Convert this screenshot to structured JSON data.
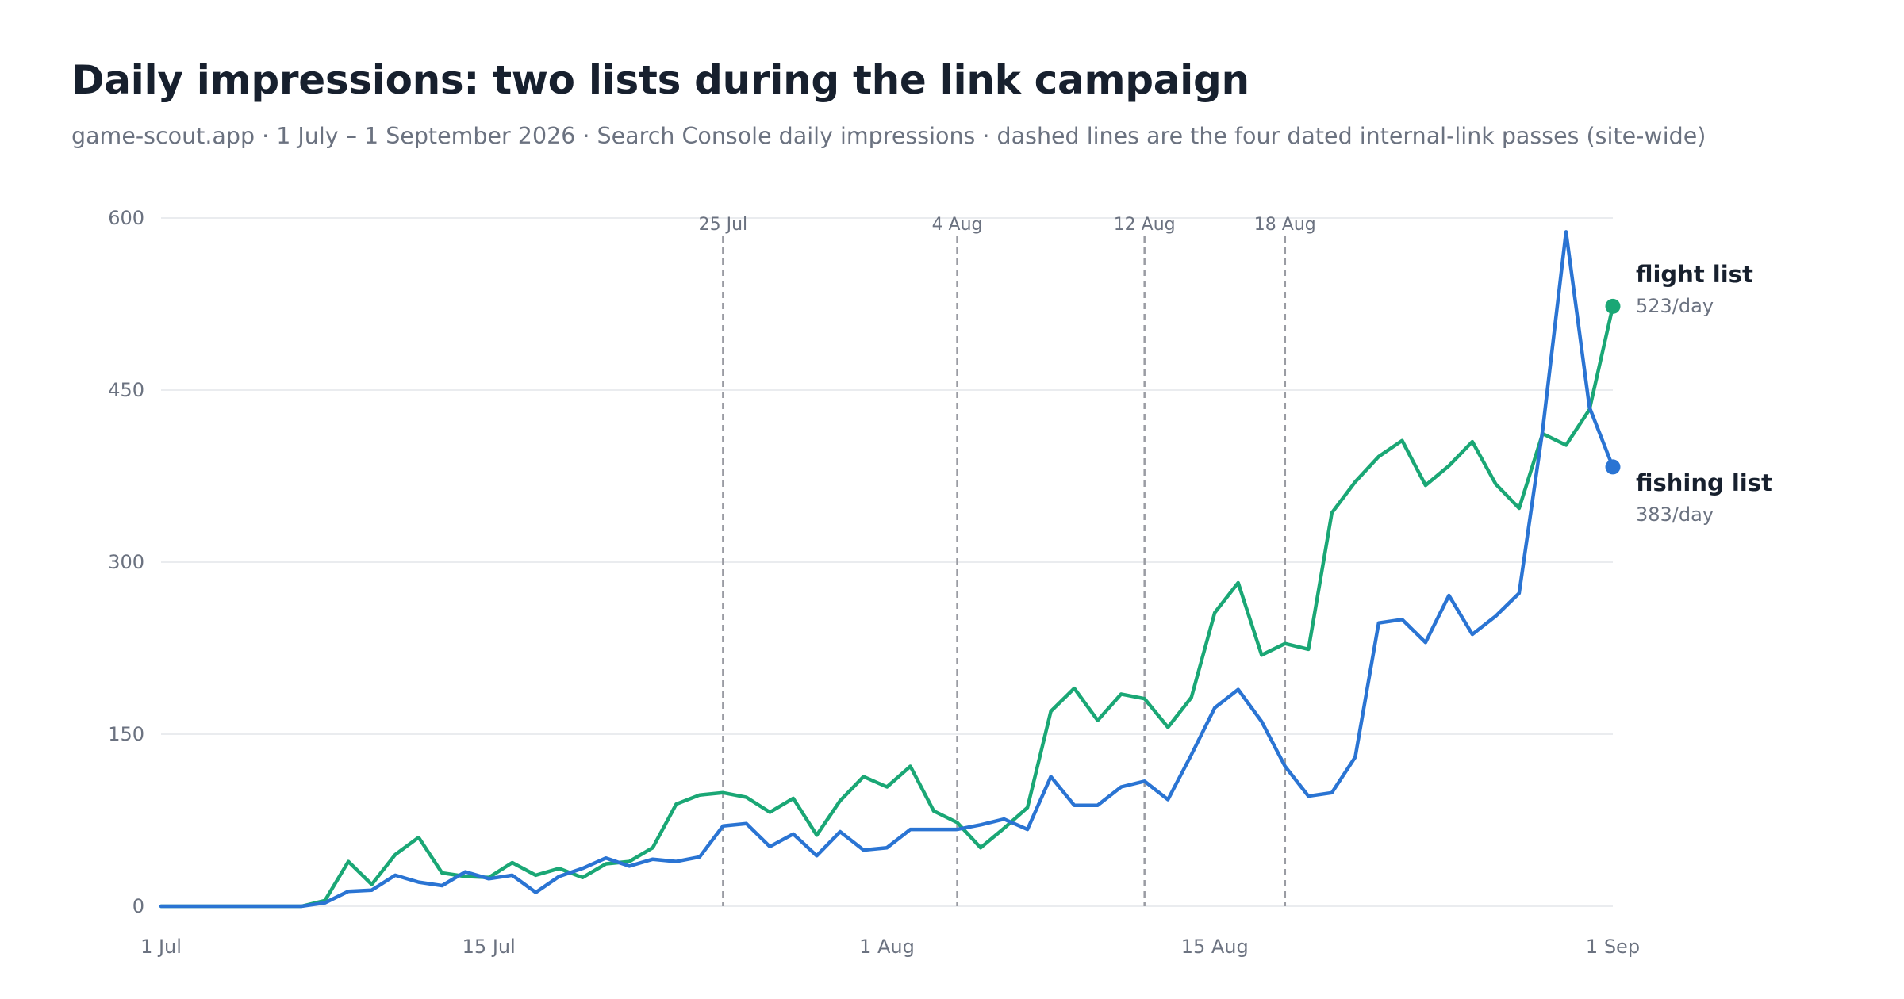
{
  "title": "Daily impressions: two lists during the link campaign",
  "subtitle": "game-scout.app · 1 July – 1 September 2026 · Search Console daily impressions · dashed lines are the four dated internal-link passes (site-wide)",
  "chart_data": {
    "type": "line",
    "x_range": [
      "2026-07-01",
      "2026-09-01"
    ],
    "x_ticks": [
      {
        "date": "2026-07-01",
        "label": "1 Jul"
      },
      {
        "date": "2026-07-15",
        "label": "15 Jul"
      },
      {
        "date": "2026-08-01",
        "label": "1 Aug"
      },
      {
        "date": "2026-08-15",
        "label": "15 Aug"
      },
      {
        "date": "2026-09-01",
        "label": "1 Sep"
      }
    ],
    "ylim": [
      0,
      600
    ],
    "y_ticks": [
      0,
      150,
      300,
      450,
      600
    ],
    "grid": "horizontal",
    "events": [
      {
        "date": "2026-07-25",
        "label": "25 Jul"
      },
      {
        "date": "2026-08-04",
        "label": "4 Aug"
      },
      {
        "date": "2026-08-12",
        "label": "12 Aug"
      },
      {
        "date": "2026-08-18",
        "label": "18 Aug"
      }
    ],
    "series": [
      {
        "name": "flight list",
        "color": "#1aa775",
        "end_label": "523/day",
        "x": [
          "2026-07-01",
          "2026-07-02",
          "2026-07-03",
          "2026-07-04",
          "2026-07-05",
          "2026-07-06",
          "2026-07-07",
          "2026-07-08",
          "2026-07-09",
          "2026-07-10",
          "2026-07-11",
          "2026-07-12",
          "2026-07-13",
          "2026-07-14",
          "2026-07-15",
          "2026-07-16",
          "2026-07-17",
          "2026-07-18",
          "2026-07-19",
          "2026-07-20",
          "2026-07-21",
          "2026-07-22",
          "2026-07-23",
          "2026-07-24",
          "2026-07-25",
          "2026-07-26",
          "2026-07-27",
          "2026-07-28",
          "2026-07-29",
          "2026-07-30",
          "2026-07-31",
          "2026-08-01",
          "2026-08-02",
          "2026-08-03",
          "2026-08-04",
          "2026-08-05",
          "2026-08-06",
          "2026-08-07",
          "2026-08-08",
          "2026-08-09",
          "2026-08-10",
          "2026-08-11",
          "2026-08-12",
          "2026-08-13",
          "2026-08-14",
          "2026-08-15",
          "2026-08-16",
          "2026-08-17",
          "2026-08-18",
          "2026-08-19",
          "2026-08-20",
          "2026-08-21",
          "2026-08-22",
          "2026-08-23",
          "2026-08-24",
          "2026-08-25",
          "2026-08-26",
          "2026-08-27",
          "2026-08-28",
          "2026-08-29",
          "2026-08-30",
          "2026-08-31",
          "2026-09-01"
        ],
        "values": [
          0,
          0,
          0,
          0,
          0,
          0,
          0,
          5,
          39,
          19,
          45,
          60,
          29,
          26,
          25,
          38,
          27,
          33,
          25,
          37,
          39,
          51,
          89,
          97,
          99,
          95,
          82,
          94,
          62,
          92,
          113,
          104,
          122,
          83,
          73,
          51,
          68,
          86,
          170,
          190,
          162,
          185,
          181,
          156,
          182,
          256,
          282,
          219,
          229,
          224,
          343,
          370,
          392,
          406,
          367,
          384,
          405,
          368,
          347,
          412,
          402,
          433,
          523
        ]
      },
      {
        "name": "fishing list",
        "color": "#2a74d3",
        "end_label": "383/day",
        "x": [
          "2026-07-01",
          "2026-07-02",
          "2026-07-03",
          "2026-07-04",
          "2026-07-05",
          "2026-07-06",
          "2026-07-07",
          "2026-07-08",
          "2026-07-09",
          "2026-07-10",
          "2026-07-11",
          "2026-07-12",
          "2026-07-13",
          "2026-07-14",
          "2026-07-15",
          "2026-07-16",
          "2026-07-17",
          "2026-07-18",
          "2026-07-19",
          "2026-07-20",
          "2026-07-21",
          "2026-07-22",
          "2026-07-23",
          "2026-07-24",
          "2026-07-25",
          "2026-07-26",
          "2026-07-27",
          "2026-07-28",
          "2026-07-29",
          "2026-07-30",
          "2026-07-31",
          "2026-08-01",
          "2026-08-02",
          "2026-08-03",
          "2026-08-04",
          "2026-08-05",
          "2026-08-06",
          "2026-08-07",
          "2026-08-08",
          "2026-08-09",
          "2026-08-10",
          "2026-08-11",
          "2026-08-12",
          "2026-08-13",
          "2026-08-14",
          "2026-08-15",
          "2026-08-16",
          "2026-08-17",
          "2026-08-18",
          "2026-08-19",
          "2026-08-20",
          "2026-08-21",
          "2026-08-22",
          "2026-08-23",
          "2026-08-24",
          "2026-08-25",
          "2026-08-26",
          "2026-08-27",
          "2026-08-28",
          "2026-08-29",
          "2026-08-30",
          "2026-08-31",
          "2026-09-01"
        ],
        "values": [
          0,
          0,
          0,
          0,
          0,
          0,
          0,
          3,
          13,
          14,
          27,
          21,
          18,
          30,
          24,
          27,
          12,
          26,
          33,
          42,
          35,
          41,
          39,
          43,
          70,
          72,
          52,
          63,
          44,
          65,
          49,
          51,
          67,
          67,
          67,
          71,
          76,
          67,
          113,
          88,
          88,
          104,
          109,
          93,
          132,
          173,
          189,
          161,
          122,
          96,
          99,
          130,
          247,
          250,
          230,
          271,
          237,
          253,
          273,
          415,
          588,
          435,
          383
        ]
      }
    ]
  }
}
